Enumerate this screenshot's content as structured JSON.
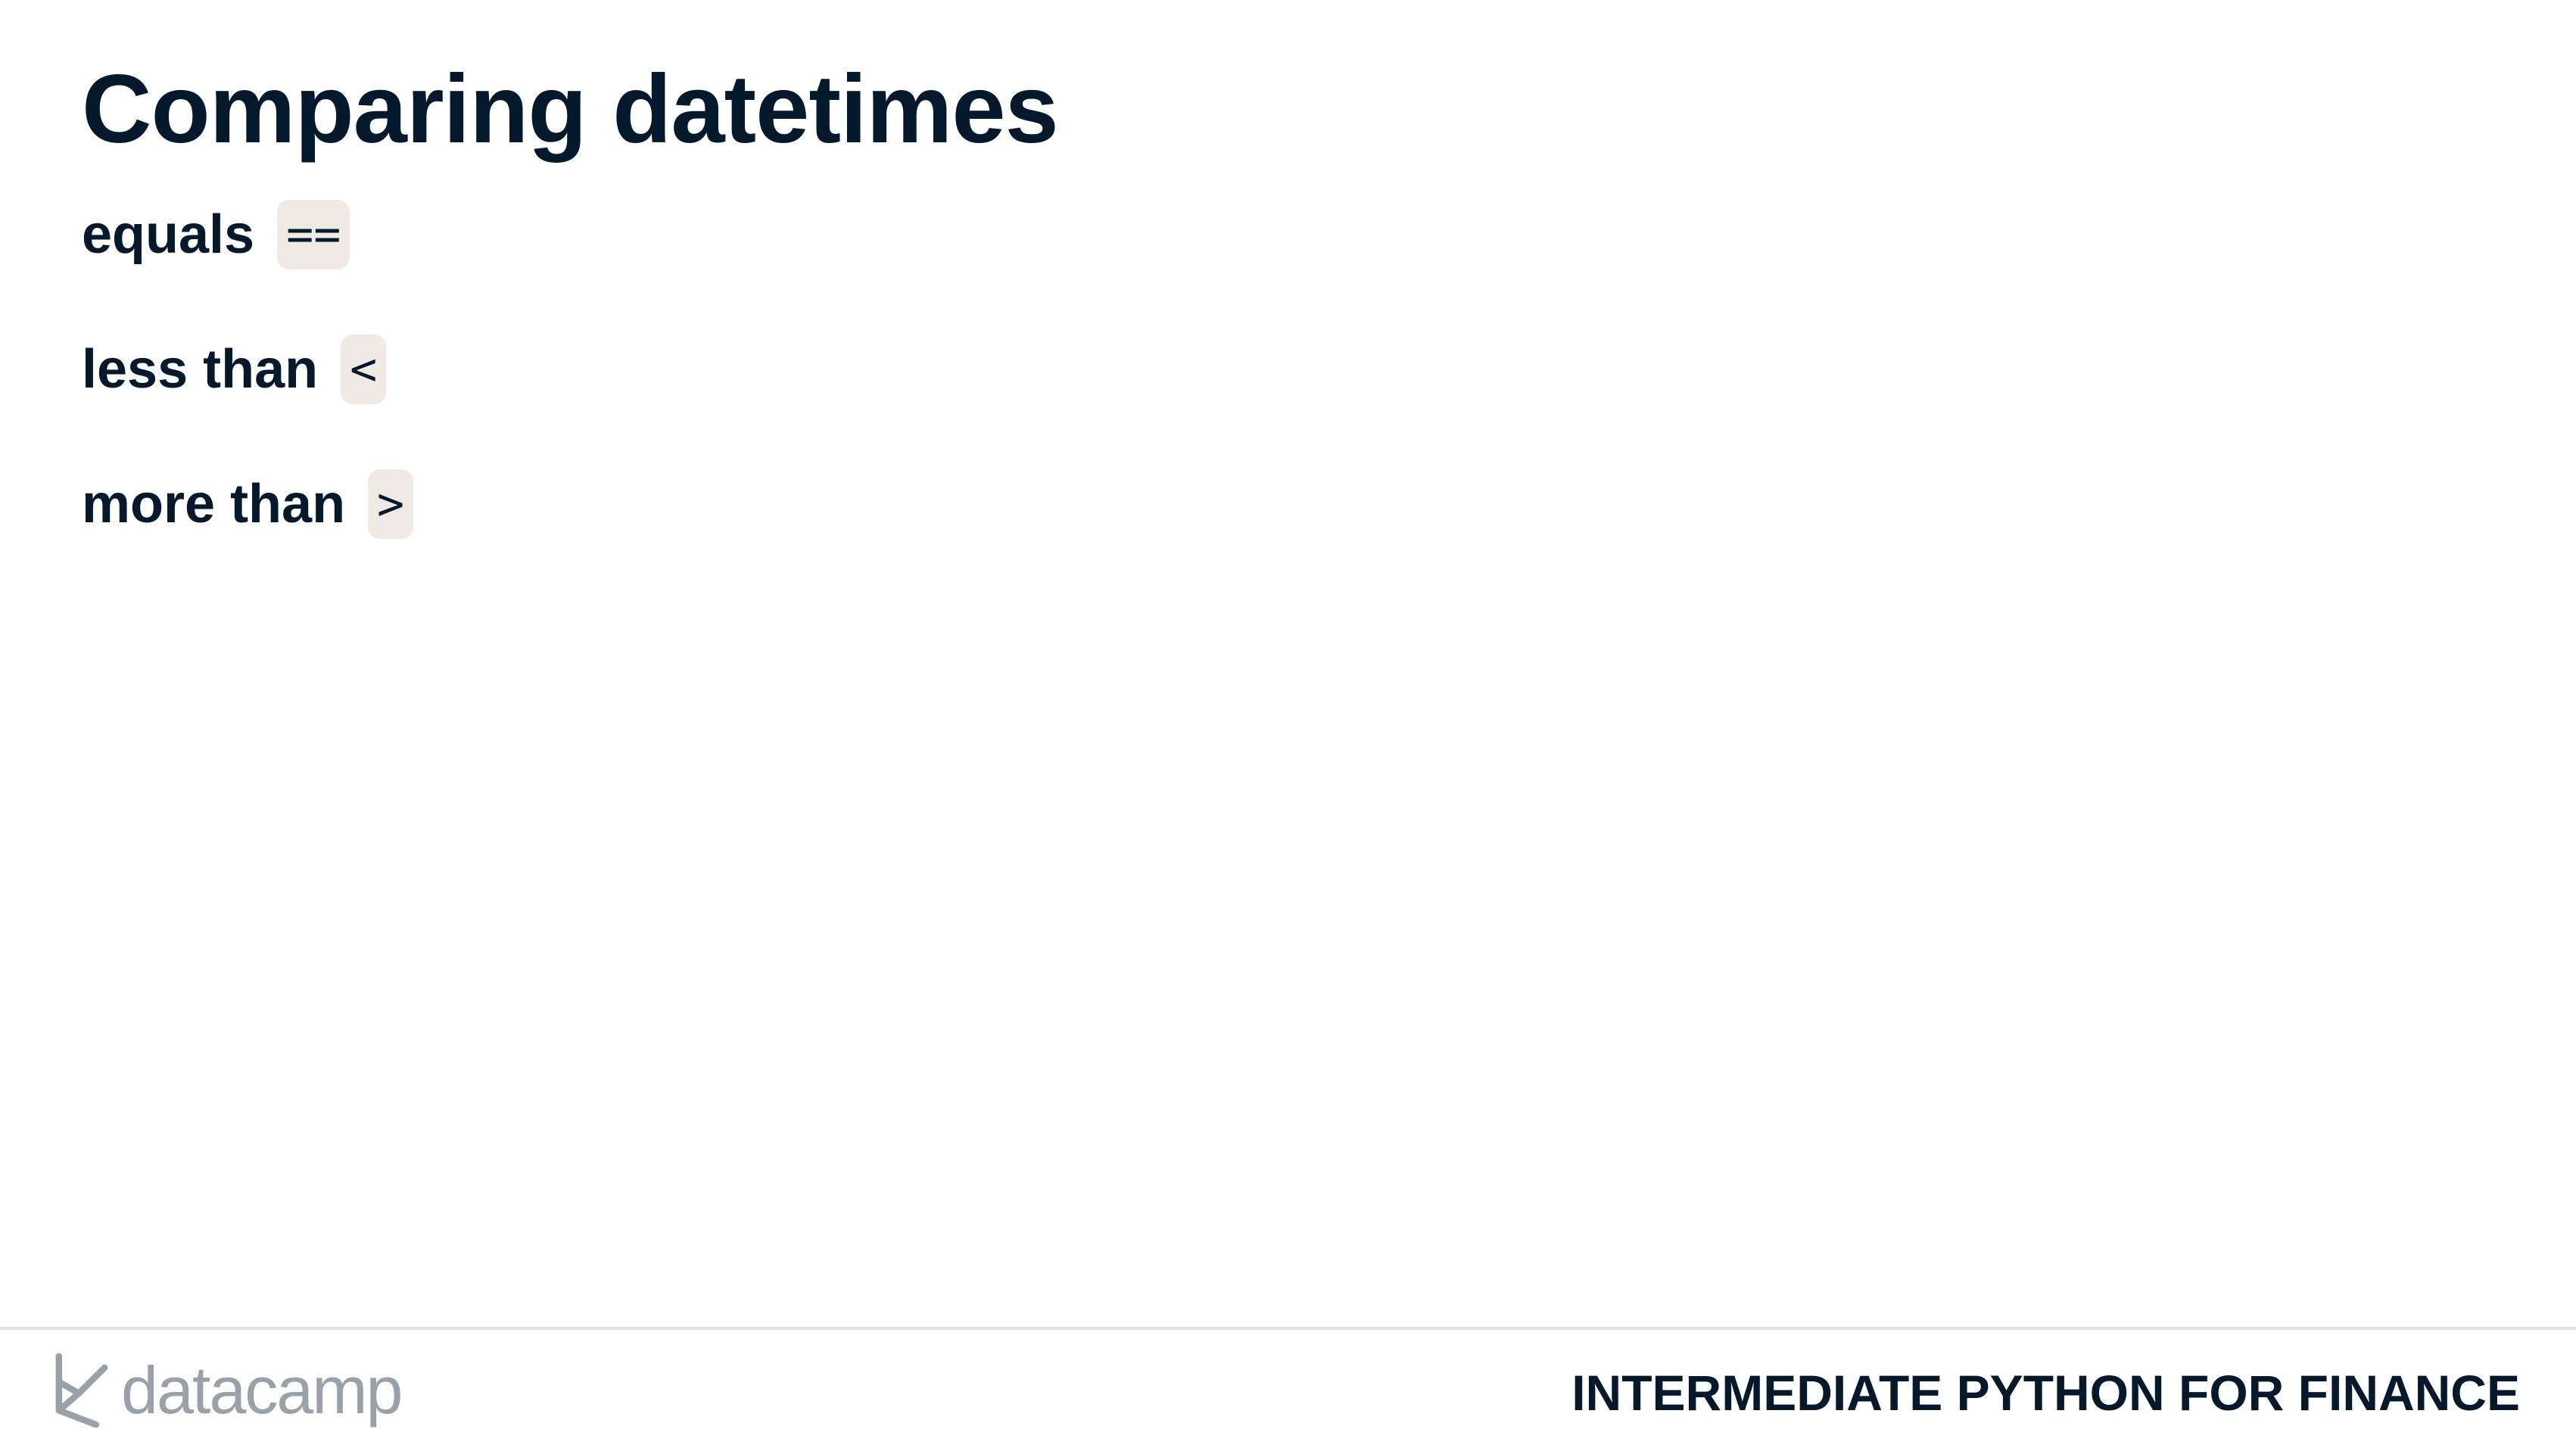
{
  "slide": {
    "title": "Comparing datetimes",
    "bullets": [
      {
        "label": "equals",
        "code": "=="
      },
      {
        "label": "less than",
        "code": "<"
      },
      {
        "label": "more than",
        "code": ">"
      }
    ]
  },
  "footer": {
    "brand_name": "datacamp",
    "brand_icon": "datacamp-logo-icon",
    "course_name": "INTERMEDIATE PYTHON FOR FINANCE"
  },
  "colors": {
    "text": "#05192d",
    "code_background": "#efebe4",
    "brand_gray": "#9aa1a8",
    "divider": "#e1e3e6"
  }
}
